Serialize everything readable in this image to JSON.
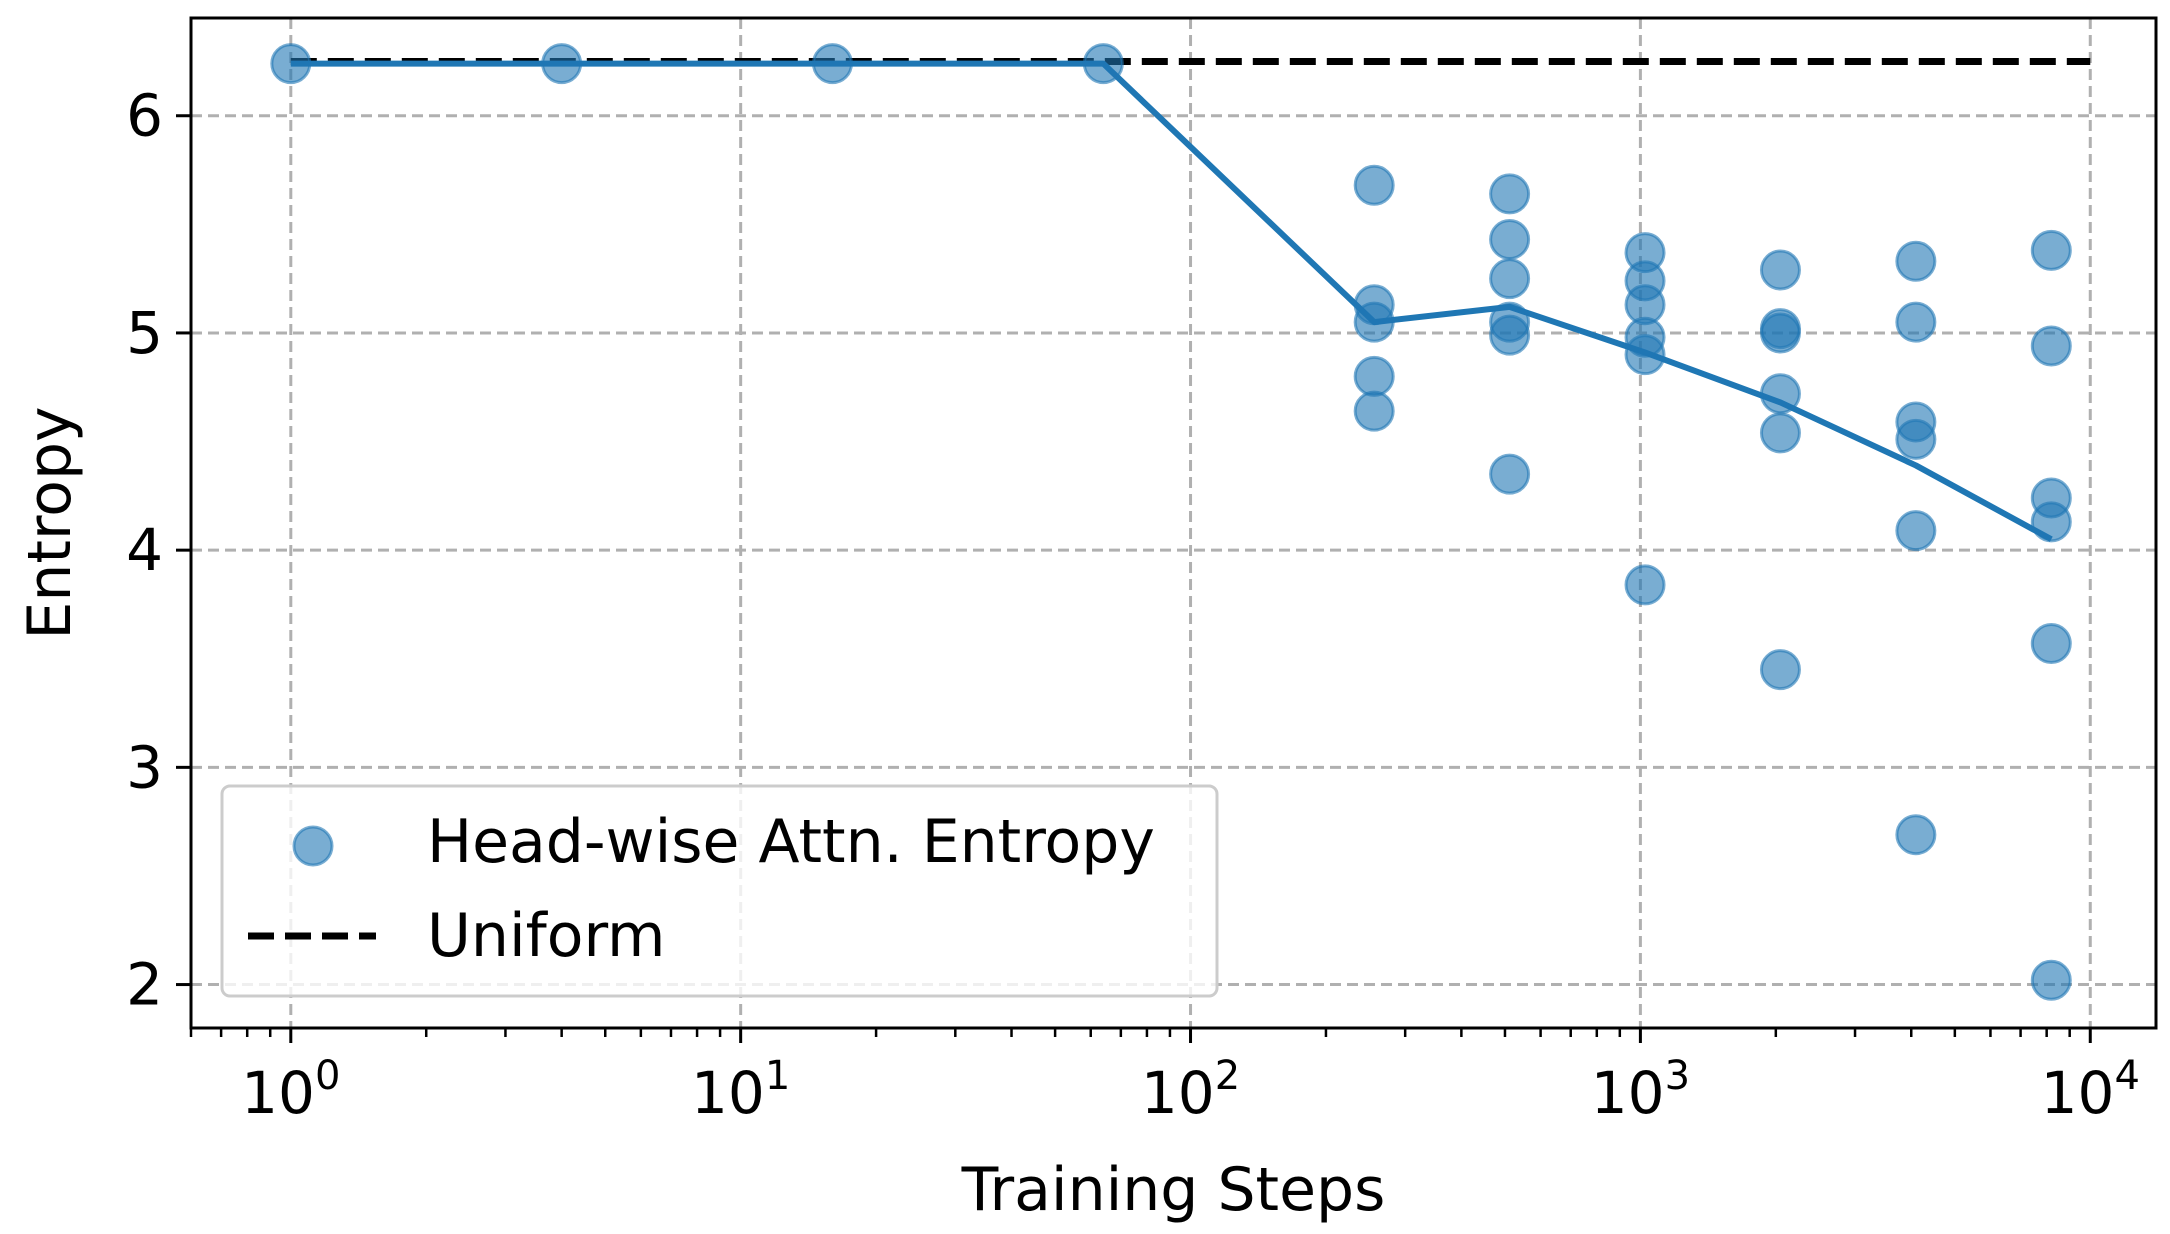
{
  "chart_data": {
    "type": "scatter",
    "title": "",
    "xlabel": "Training Steps",
    "ylabel": "Entropy",
    "xscale": "log",
    "xlim": [
      0.6,
      14000
    ],
    "ylim": [
      1.8,
      6.45
    ],
    "grid": true,
    "legend_position": "lower-left",
    "x_ticks": [
      {
        "value": 1,
        "base": "10",
        "exp": "0"
      },
      {
        "value": 10,
        "base": "10",
        "exp": "1"
      },
      {
        "value": 100,
        "base": "10",
        "exp": "2"
      },
      {
        "value": 1000,
        "base": "10",
        "exp": "3"
      },
      {
        "value": 10000,
        "base": "10",
        "exp": "4"
      }
    ],
    "y_ticks": [
      2,
      3,
      4,
      5,
      6
    ],
    "y_tick_labels": [
      "2",
      "3",
      "4",
      "5",
      "6"
    ],
    "series": [
      {
        "name": "Head-wise Attn. Entropy",
        "kind": "scatter",
        "color": "#1f77b4",
        "points": [
          [
            1,
            6.24
          ],
          [
            4,
            6.24
          ],
          [
            16,
            6.24
          ],
          [
            64,
            6.24
          ],
          [
            256,
            5.68
          ],
          [
            256,
            5.13
          ],
          [
            256,
            5.05
          ],
          [
            256,
            4.8
          ],
          [
            256,
            4.64
          ],
          [
            512,
            5.64
          ],
          [
            512,
            5.43
          ],
          [
            512,
            5.25
          ],
          [
            512,
            5.05
          ],
          [
            512,
            4.99
          ],
          [
            512,
            4.35
          ],
          [
            1024,
            5.37
          ],
          [
            1024,
            5.24
          ],
          [
            1024,
            5.13
          ],
          [
            1024,
            4.98
          ],
          [
            1024,
            4.9
          ],
          [
            1024,
            3.84
          ],
          [
            2048,
            5.29
          ],
          [
            2048,
            5.02
          ],
          [
            2048,
            5.0
          ],
          [
            2048,
            4.72
          ],
          [
            2048,
            4.54
          ],
          [
            2048,
            3.45
          ],
          [
            4096,
            5.33
          ],
          [
            4096,
            5.05
          ],
          [
            4096,
            4.59
          ],
          [
            4096,
            4.51
          ],
          [
            4096,
            4.09
          ],
          [
            4096,
            2.69
          ],
          [
            8192,
            5.38
          ],
          [
            8192,
            4.94
          ],
          [
            8192,
            4.24
          ],
          [
            8192,
            4.13
          ],
          [
            8192,
            3.57
          ],
          [
            8192,
            2.02
          ]
        ]
      },
      {
        "name": "",
        "kind": "line",
        "color": "#1f77b4",
        "x": [
          1,
          4,
          16,
          64,
          256,
          512,
          1024,
          2048,
          4096,
          8192
        ],
        "y": [
          6.24,
          6.24,
          6.24,
          6.24,
          5.05,
          5.12,
          4.91,
          4.68,
          4.39,
          4.05
        ]
      },
      {
        "name": "Uniform",
        "kind": "dashed-line",
        "color": "#000000",
        "x": [
          1,
          10000
        ],
        "y": [
          6.25,
          6.25
        ]
      }
    ],
    "legend": [
      {
        "label": "Head-wise Attn. Entropy",
        "marker": "circle",
        "color": "#1f77b4"
      },
      {
        "label": "Uniform",
        "marker": "dashed-line",
        "color": "#000000"
      }
    ]
  }
}
